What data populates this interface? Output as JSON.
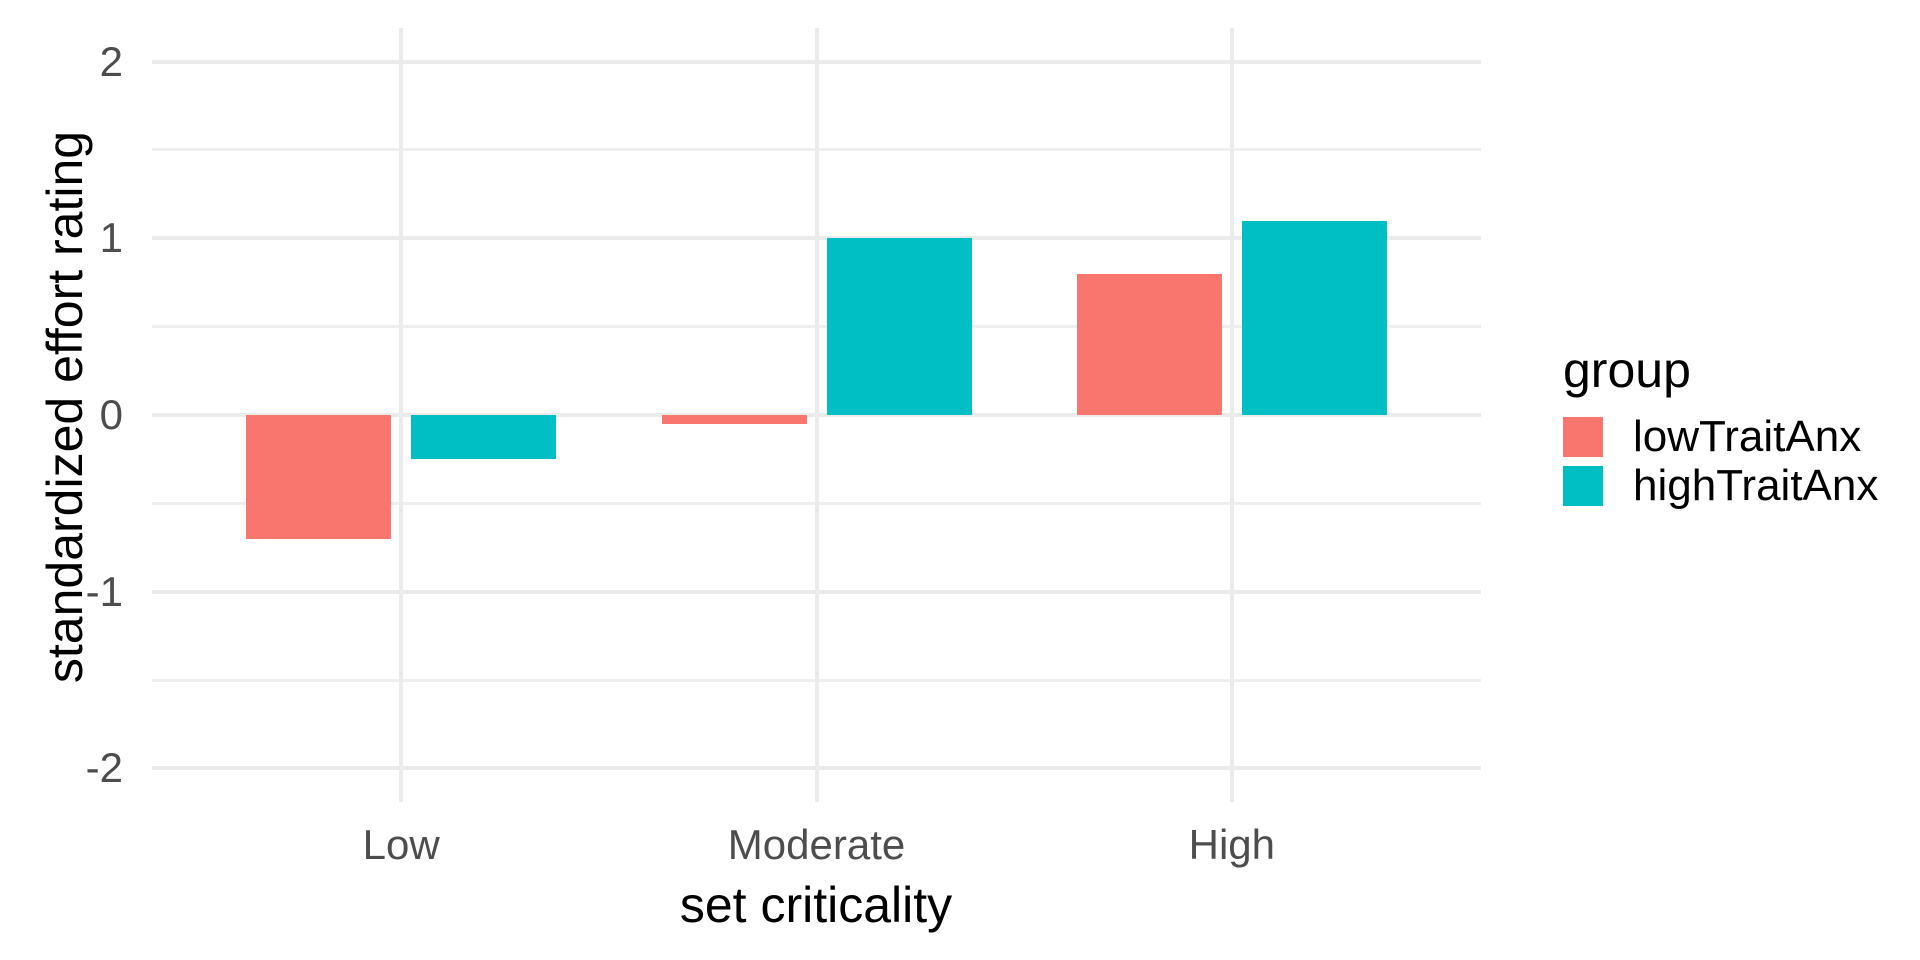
{
  "chart_data": {
    "type": "bar",
    "title": "",
    "xlabel": "set criticality",
    "ylabel": "standardized effort rating",
    "categories": [
      "Low",
      "Moderate",
      "High"
    ],
    "series": [
      {
        "name": "lowTraitAnx",
        "color": "#F8766D",
        "values": [
          -0.7,
          -0.05,
          0.8
        ]
      },
      {
        "name": "highTraitAnx",
        "color": "#00BFC4",
        "values": [
          -0.25,
          1.0,
          1.1
        ]
      }
    ],
    "ylim": [
      -2.19,
      2.19
    ],
    "yticks": [
      -2,
      -1,
      0,
      1,
      2
    ],
    "ytick_labels": [
      "-2",
      "-1",
      "0",
      "1",
      "2"
    ],
    "yticks_minor": [
      -1.5,
      -0.5,
      0.5,
      1.5
    ],
    "grid": true,
    "legend": {
      "title": "group",
      "position": "right"
    }
  },
  "colors": {
    "background": "#FFFFFF",
    "grid_major": "#EBEBEB",
    "grid_minor": "#EFEFEF",
    "axis_text": "#4D4D4D",
    "axis_title": "#000000",
    "series_low": "#F8766D",
    "series_high": "#00BFC4"
  }
}
